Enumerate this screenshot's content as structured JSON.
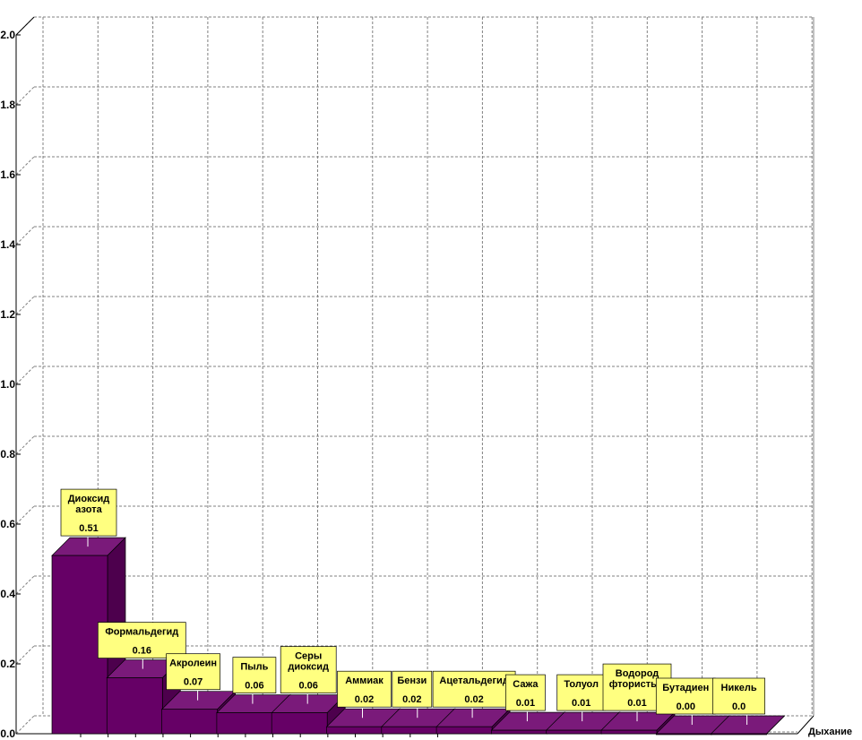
{
  "chart_data": {
    "type": "bar",
    "categories": [
      "Диоксид азота",
      "Формальдегид",
      "Акролеин",
      "Пыль",
      "Серы диоксид",
      "Аммиак",
      "Бензин",
      "Ацетальдегид",
      "Сажа",
      "Толуол",
      "Водород фтористый",
      "Бутадиен",
      "Никель"
    ],
    "values": [
      0.51,
      0.16,
      0.07,
      0.06,
      0.06,
      0.02,
      0.02,
      0.02,
      0.01,
      0.01,
      0.01,
      0.0,
      0.0
    ],
    "label_lines": [
      [
        "Диоксид",
        "азота"
      ],
      [
        "Формальдегид"
      ],
      [
        "Акролеин"
      ],
      [
        "Пыль"
      ],
      [
        "Серы",
        "диоксид"
      ],
      [
        "Аммиак"
      ],
      [
        "Бензи"
      ],
      [
        "Ацетальдегид"
      ],
      [
        "Сажа"
      ],
      [
        "Толуол"
      ],
      [
        "Водород",
        "фтористый"
      ],
      [
        "Бутадиен"
      ],
      [
        "Никель"
      ]
    ],
    "value_labels": [
      "0.51",
      "0.16",
      "0.07",
      "0.06",
      "0.06",
      "0.02",
      "0.02",
      "0.02",
      "0.01",
      "0.01",
      "0.01",
      "0.00",
      "0.0"
    ],
    "yticks": [
      "0.0",
      "0.2",
      "0.4",
      "0.6",
      "0.8",
      "1.0",
      "1.2",
      "1.4",
      "1.6",
      "1.8",
      "2.0"
    ],
    "ylim": [
      0,
      2.0
    ],
    "xlabel": "Дыхание",
    "ylabel": "",
    "grid": true,
    "colors": {
      "bar": "#660066",
      "bar_top": "#7a1a7a",
      "bar_side": "#4d004d",
      "callout": "#ffff80",
      "grid": "#808080"
    }
  }
}
